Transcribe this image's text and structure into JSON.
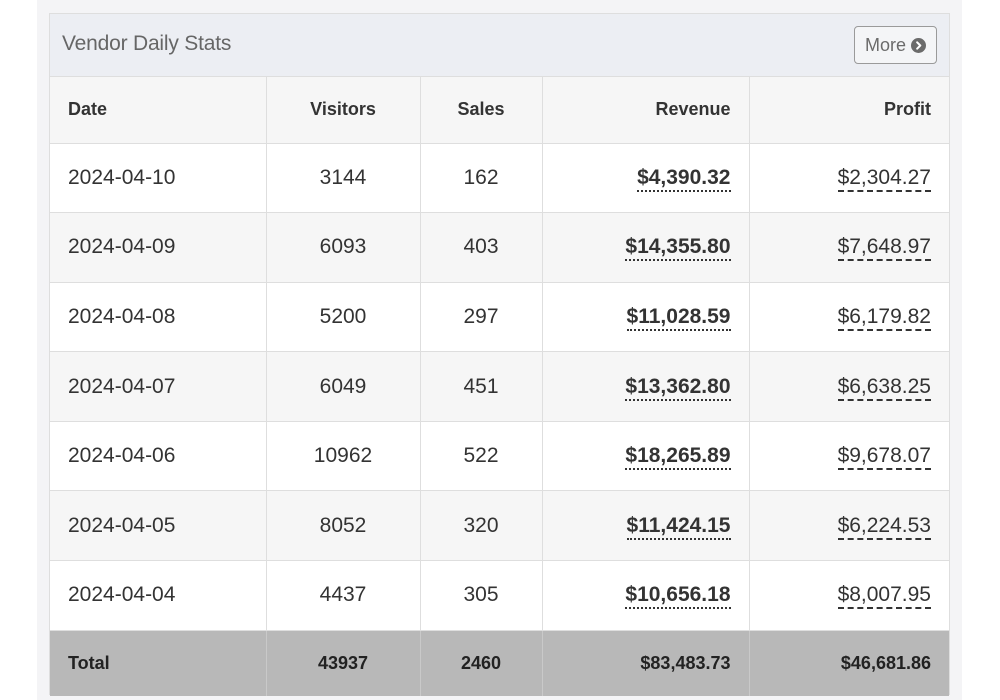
{
  "panel": {
    "title": "Vendor Daily Stats",
    "more_label": "More",
    "more_icon": "chevron-circle-right-icon"
  },
  "table": {
    "headers": {
      "date": "Date",
      "visitors": "Visitors",
      "sales": "Sales",
      "revenue": "Revenue",
      "profit": "Profit"
    },
    "rows": [
      {
        "date": "2024-04-10",
        "visitors": "3144",
        "sales": "162",
        "revenue": "$4,390.32",
        "profit": "$2,304.27"
      },
      {
        "date": "2024-04-09",
        "visitors": "6093",
        "sales": "403",
        "revenue": "$14,355.80",
        "profit": "$7,648.97"
      },
      {
        "date": "2024-04-08",
        "visitors": "5200",
        "sales": "297",
        "revenue": "$11,028.59",
        "profit": "$6,179.82"
      },
      {
        "date": "2024-04-07",
        "visitors": "6049",
        "sales": "451",
        "revenue": "$13,362.80",
        "profit": "$6,638.25"
      },
      {
        "date": "2024-04-06",
        "visitors": "10962",
        "sales": "522",
        "revenue": "$18,265.89",
        "profit": "$9,678.07"
      },
      {
        "date": "2024-04-05",
        "visitors": "8052",
        "sales": "320",
        "revenue": "$11,424.15",
        "profit": "$6,224.53"
      },
      {
        "date": "2024-04-04",
        "visitors": "4437",
        "sales": "305",
        "revenue": "$10,656.18",
        "profit": "$8,007.95"
      }
    ],
    "total": {
      "label": "Total",
      "visitors": "43937",
      "sales": "2460",
      "revenue": "$83,483.73",
      "profit": "$46,681.86"
    }
  },
  "colors": {
    "heading_bg": "#eceef3",
    "total_row_bg": "#b8b8b8",
    "stripe_bg": "#f6f6f6"
  }
}
